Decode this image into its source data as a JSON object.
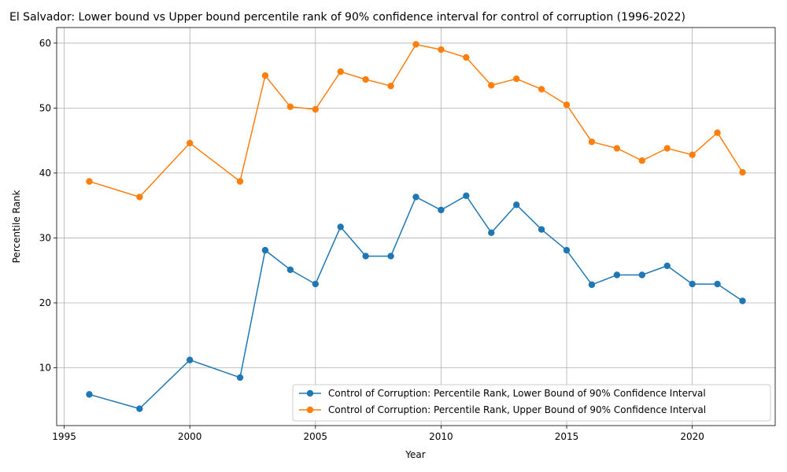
{
  "chart_data": {
    "type": "line",
    "title": "El Salvador: Lower bound vs Upper bound percentile rank of 90% confidence interval for control of corruption (1996-2022)",
    "xlabel": "Year",
    "ylabel": "Percentile Rank",
    "xlim": [
      1994.7,
      2023.3
    ],
    "ylim": [
      1.1,
      62.4
    ],
    "xticks": [
      1995,
      2000,
      2005,
      2010,
      2015,
      2020
    ],
    "yticks": [
      10,
      20,
      30,
      40,
      50,
      60
    ],
    "grid": true,
    "legend_position": "lower-right",
    "x": [
      1996,
      1998,
      2000,
      2002,
      2003,
      2004,
      2005,
      2006,
      2007,
      2008,
      2009,
      2010,
      2011,
      2012,
      2013,
      2014,
      2015,
      2016,
      2017,
      2018,
      2019,
      2020,
      2021,
      2022
    ],
    "series": [
      {
        "name": "Control of Corruption: Percentile Rank, Lower Bound of 90% Confidence Interval",
        "color": "#1f77b4",
        "values": [
          5.9,
          3.7,
          11.2,
          8.5,
          28.1,
          25.1,
          22.9,
          31.7,
          27.2,
          27.2,
          36.3,
          34.3,
          36.5,
          30.8,
          35.1,
          31.3,
          28.1,
          22.8,
          24.3,
          24.3,
          25.7,
          22.9,
          22.9,
          20.3
        ]
      },
      {
        "name": "Control of Corruption: Percentile Rank, Upper Bound of 90% Confidence Interval",
        "color": "#ff7f0e",
        "values": [
          38.7,
          36.3,
          44.6,
          38.7,
          55.0,
          50.2,
          49.8,
          55.6,
          54.4,
          53.4,
          59.8,
          59.0,
          57.8,
          53.5,
          54.5,
          52.9,
          50.5,
          44.8,
          43.8,
          41.9,
          43.8,
          42.8,
          46.2,
          40.1
        ]
      }
    ]
  }
}
